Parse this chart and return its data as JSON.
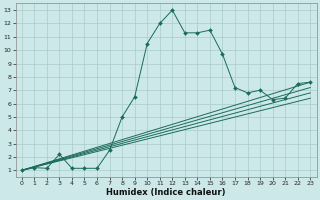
{
  "xlabel": "Humidex (Indice chaleur)",
  "bg_color": "#cce8e8",
  "grid_color": "#aacccc",
  "line_color": "#1a6b5a",
  "xlim": [
    -0.5,
    23.5
  ],
  "ylim": [
    0.5,
    13.5
  ],
  "xticks": [
    0,
    1,
    2,
    3,
    4,
    5,
    6,
    7,
    8,
    9,
    10,
    11,
    12,
    13,
    14,
    15,
    16,
    17,
    18,
    19,
    20,
    21,
    22,
    23
  ],
  "yticks": [
    1,
    2,
    3,
    4,
    5,
    6,
    7,
    8,
    9,
    10,
    11,
    12,
    13
  ],
  "main_series": {
    "x": [
      0,
      1,
      2,
      3,
      4,
      5,
      6,
      7,
      8,
      9,
      10,
      11,
      12,
      13,
      14,
      15,
      16,
      17,
      18,
      19,
      20,
      21,
      22,
      23
    ],
    "y": [
      1.0,
      1.2,
      1.15,
      2.2,
      1.15,
      1.15,
      1.15,
      2.5,
      5.0,
      6.5,
      10.5,
      12.0,
      13.0,
      11.3,
      11.3,
      11.5,
      9.7,
      7.2,
      6.8,
      7.0,
      6.3,
      6.4,
      7.5,
      7.6
    ]
  },
  "regression_lines": [
    {
      "x": [
        0,
        23
      ],
      "y": [
        1.0,
        7.6
      ]
    },
    {
      "x": [
        0,
        23
      ],
      "y": [
        1.0,
        7.2
      ]
    },
    {
      "x": [
        0,
        23
      ],
      "y": [
        1.0,
        6.8
      ]
    },
    {
      "x": [
        0,
        23
      ],
      "y": [
        1.0,
        6.4
      ]
    }
  ]
}
